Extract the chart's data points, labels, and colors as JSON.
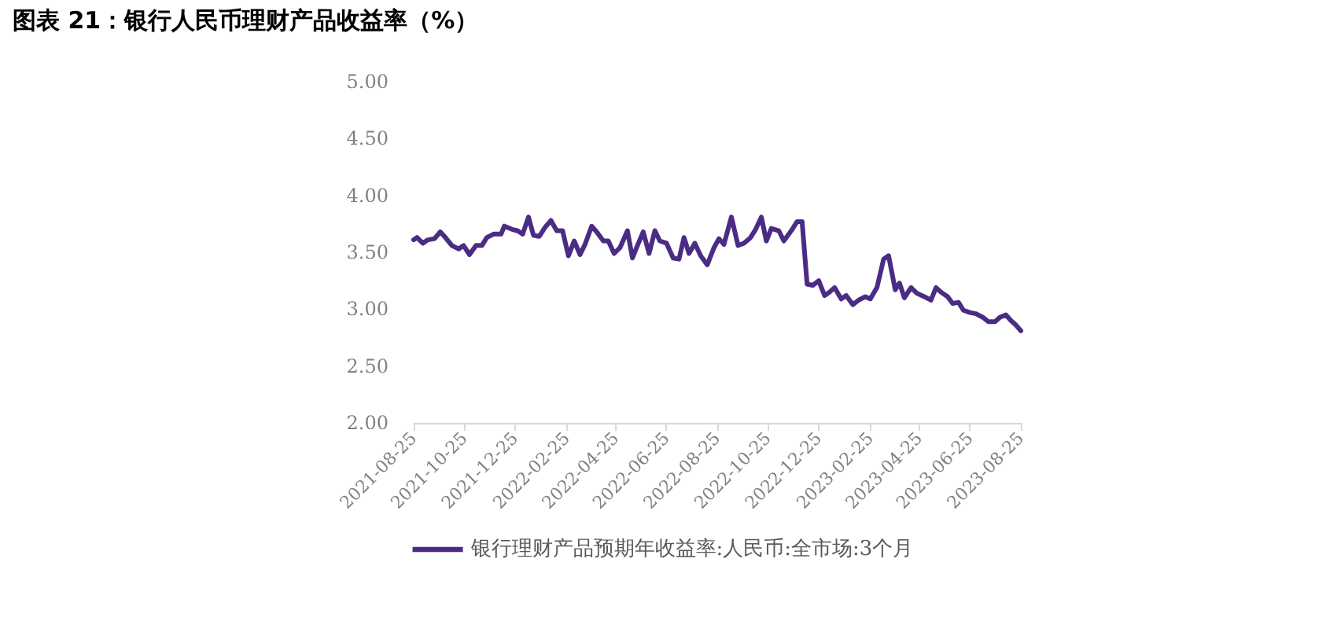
{
  "chart_data": {
    "type": "line",
    "title": "图表 21：银行人民币理财产品收益率（%）",
    "x": [
      "2021-08-25",
      "2021-08-29",
      "2021-09-05",
      "2021-09-11",
      "2021-09-19",
      "2021-09-26",
      "2021-10-01",
      "2021-10-10",
      "2021-10-18",
      "2021-10-24",
      "2021-10-31",
      "2021-11-08",
      "2021-11-15",
      "2021-11-21",
      "2021-11-29",
      "2021-12-08",
      "2021-12-12",
      "2021-12-22",
      "2021-12-28",
      "2022-01-03",
      "2022-01-10",
      "2022-01-16",
      "2022-01-23",
      "2022-01-30",
      "2022-02-06",
      "2022-02-13",
      "2022-02-20",
      "2022-02-27",
      "2022-03-06",
      "2022-03-13",
      "2022-03-19",
      "2022-03-27",
      "2022-04-02",
      "2022-04-10",
      "2022-04-16",
      "2022-04-23",
      "2022-04-30",
      "2022-05-09",
      "2022-05-15",
      "2022-05-21",
      "2022-05-28",
      "2022-06-04",
      "2022-06-11",
      "2022-06-17",
      "2022-06-25",
      "2022-07-03",
      "2022-07-10",
      "2022-07-16",
      "2022-07-22",
      "2022-07-29",
      "2022-08-05",
      "2022-08-13",
      "2022-08-21",
      "2022-08-27",
      "2022-09-02",
      "2022-09-11",
      "2022-09-19",
      "2022-09-26",
      "2022-10-04",
      "2022-10-10",
      "2022-10-17",
      "2022-10-23",
      "2022-10-29",
      "2022-11-07",
      "2022-11-13",
      "2022-11-22",
      "2022-11-29",
      "2022-12-05",
      "2022-12-11",
      "2022-12-18",
      "2022-12-25",
      "2023-01-01",
      "2023-01-07",
      "2023-01-13",
      "2023-01-21",
      "2023-01-27",
      "2023-02-04",
      "2023-02-11",
      "2023-02-19",
      "2023-02-25",
      "2023-03-05",
      "2023-03-13",
      "2023-03-19",
      "2023-03-27",
      "2023-04-01",
      "2023-04-07",
      "2023-04-15",
      "2023-04-22",
      "2023-05-01",
      "2023-05-09",
      "2023-05-15",
      "2023-05-21",
      "2023-05-29",
      "2023-06-04",
      "2023-06-11",
      "2023-06-17",
      "2023-06-25",
      "2023-07-02",
      "2023-07-10",
      "2023-07-17",
      "2023-07-25",
      "2023-07-31",
      "2023-08-07",
      "2023-08-13",
      "2023-08-19",
      "2023-08-25"
    ],
    "series": [
      {
        "name": "银行理财产品预期年收益率:人民币:全市场:3个月",
        "color": "#4b2c84",
        "values": [
          3.61,
          3.63,
          3.58,
          3.61,
          3.62,
          3.68,
          3.64,
          3.56,
          3.53,
          3.56,
          3.48,
          3.56,
          3.56,
          3.63,
          3.66,
          3.66,
          3.73,
          3.7,
          3.69,
          3.66,
          3.81,
          3.65,
          3.64,
          3.72,
          3.78,
          3.69,
          3.69,
          3.47,
          3.6,
          3.48,
          3.57,
          3.73,
          3.68,
          3.6,
          3.6,
          3.49,
          3.54,
          3.69,
          3.45,
          3.56,
          3.68,
          3.49,
          3.69,
          3.6,
          3.58,
          3.45,
          3.44,
          3.63,
          3.49,
          3.58,
          3.47,
          3.39,
          3.54,
          3.62,
          3.57,
          3.81,
          3.56,
          3.58,
          3.63,
          3.7,
          3.81,
          3.6,
          3.71,
          3.69,
          3.6,
          3.69,
          3.77,
          3.77,
          3.22,
          3.21,
          3.25,
          3.12,
          3.15,
          3.19,
          3.09,
          3.12,
          3.04,
          3.08,
          3.11,
          3.09,
          3.19,
          3.44,
          3.47,
          3.17,
          3.23,
          3.1,
          3.19,
          3.14,
          3.11,
          3.08,
          3.19,
          3.15,
          3.11,
          3.05,
          3.06,
          2.99,
          2.97,
          2.96,
          2.93,
          2.89,
          2.89,
          2.93,
          2.95,
          2.9,
          2.86,
          2.81
        ]
      }
    ],
    "xlim": [
      "2021-08-25",
      "2023-08-25"
    ],
    "xticks": [
      "2021-08-25",
      "2021-10-25",
      "2021-12-25",
      "2022-02-25",
      "2022-04-25",
      "2022-06-25",
      "2022-08-25",
      "2022-10-25",
      "2022-12-25",
      "2023-02-25",
      "2023-04-25",
      "2023-06-25",
      "2023-08-25"
    ],
    "ylim": [
      2,
      5
    ],
    "yticks": [
      {
        "value": 2,
        "label": "2.00"
      },
      {
        "value": 2.5,
        "label": "2.50"
      },
      {
        "value": 3,
        "label": "3.00"
      },
      {
        "value": 3.5,
        "label": "3.50"
      },
      {
        "value": 4,
        "label": "4.00"
      },
      {
        "value": 4.5,
        "label": "4.50"
      },
      {
        "value": 5,
        "label": "5.00"
      }
    ],
    "grid": false,
    "legend": "bottom",
    "marker": "none",
    "line_style": "solid"
  }
}
